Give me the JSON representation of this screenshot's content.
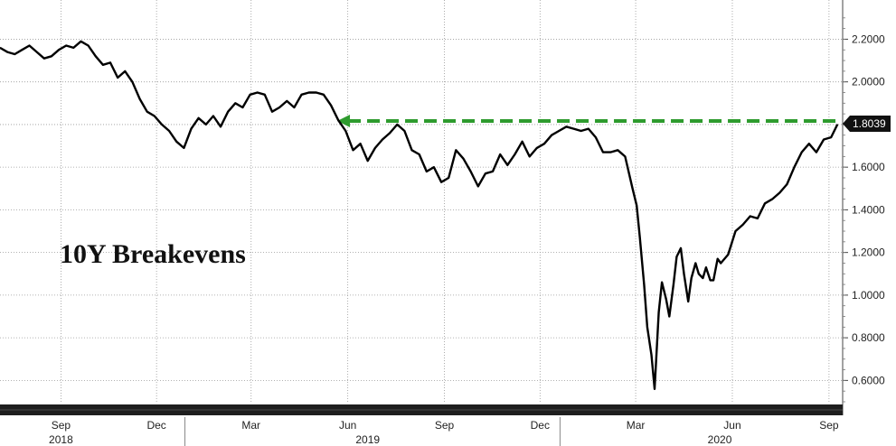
{
  "chart_data": {
    "type": "line",
    "title": "10Y Breakevens",
    "ylim": [
      0.5,
      2.35
    ],
    "y_ticks": [
      "2.2000",
      "2.0000",
      "1.8000",
      "1.6000",
      "1.4000",
      "1.2000",
      "1.0000",
      "0.8000",
      "0.6000"
    ],
    "y_tick_values": [
      2.2,
      2.0,
      1.8,
      1.6,
      1.4,
      1.2,
      1.0,
      0.8,
      0.6
    ],
    "x_range": [
      "2018-07-05",
      "2020-09-14"
    ],
    "month_ticks": [
      {
        "label": "Sep",
        "date": "2018-09-01"
      },
      {
        "label": "Dec",
        "date": "2018-12-01"
      },
      {
        "label": "Mar",
        "date": "2019-03-01"
      },
      {
        "label": "Jun",
        "date": "2019-06-01"
      },
      {
        "label": "Sep",
        "date": "2019-09-01"
      },
      {
        "label": "Dec",
        "date": "2019-12-01"
      },
      {
        "label": "Mar",
        "date": "2020-03-01"
      },
      {
        "label": "Jun",
        "date": "2020-06-01"
      },
      {
        "label": "Sep",
        "date": "2020-09-01"
      }
    ],
    "year_labels": [
      {
        "label": "2018",
        "date": "2018-09-01"
      },
      {
        "label": "2019",
        "date": "2019-06-20"
      },
      {
        "label": "2020",
        "date": "2020-05-20"
      }
    ],
    "year_separators": [
      "2018-12-28",
      "2019-12-20"
    ],
    "last_value_label": "1.8039",
    "reference_line": {
      "value": 1.8039,
      "from": "2019-05-22",
      "to": "2020-09-09",
      "color": "#2e9b2e"
    },
    "series": [
      {
        "color": "#000000",
        "points": [
          [
            "2018-07-05",
            2.16
          ],
          [
            "2018-07-12",
            2.14
          ],
          [
            "2018-07-19",
            2.13
          ],
          [
            "2018-07-26",
            2.15
          ],
          [
            "2018-08-02",
            2.17
          ],
          [
            "2018-08-09",
            2.14
          ],
          [
            "2018-08-16",
            2.11
          ],
          [
            "2018-08-23",
            2.12
          ],
          [
            "2018-08-30",
            2.15
          ],
          [
            "2018-09-06",
            2.17
          ],
          [
            "2018-09-13",
            2.16
          ],
          [
            "2018-09-20",
            2.19
          ],
          [
            "2018-09-27",
            2.17
          ],
          [
            "2018-10-04",
            2.12
          ],
          [
            "2018-10-11",
            2.08
          ],
          [
            "2018-10-18",
            2.09
          ],
          [
            "2018-10-25",
            2.02
          ],
          [
            "2018-11-01",
            2.05
          ],
          [
            "2018-11-08",
            2.0
          ],
          [
            "2018-11-15",
            1.92
          ],
          [
            "2018-11-22",
            1.86
          ],
          [
            "2018-11-29",
            1.84
          ],
          [
            "2018-12-06",
            1.8
          ],
          [
            "2018-12-13",
            1.77
          ],
          [
            "2018-12-20",
            1.72
          ],
          [
            "2018-12-27",
            1.69
          ],
          [
            "2019-01-03",
            1.78
          ],
          [
            "2019-01-10",
            1.83
          ],
          [
            "2019-01-17",
            1.8
          ],
          [
            "2019-01-24",
            1.84
          ],
          [
            "2019-01-31",
            1.79
          ],
          [
            "2019-02-07",
            1.86
          ],
          [
            "2019-02-14",
            1.9
          ],
          [
            "2019-02-21",
            1.88
          ],
          [
            "2019-02-28",
            1.94
          ],
          [
            "2019-03-07",
            1.95
          ],
          [
            "2019-03-14",
            1.94
          ],
          [
            "2019-03-21",
            1.86
          ],
          [
            "2019-03-28",
            1.88
          ],
          [
            "2019-04-04",
            1.91
          ],
          [
            "2019-04-11",
            1.88
          ],
          [
            "2019-04-18",
            1.94
          ],
          [
            "2019-04-25",
            1.95
          ],
          [
            "2019-05-02",
            1.95
          ],
          [
            "2019-05-09",
            1.94
          ],
          [
            "2019-05-16",
            1.89
          ],
          [
            "2019-05-23",
            1.82
          ],
          [
            "2019-05-30",
            1.77
          ],
          [
            "2019-06-06",
            1.68
          ],
          [
            "2019-06-13",
            1.71
          ],
          [
            "2019-06-20",
            1.63
          ],
          [
            "2019-06-27",
            1.69
          ],
          [
            "2019-07-04",
            1.73
          ],
          [
            "2019-07-11",
            1.76
          ],
          [
            "2019-07-18",
            1.8
          ],
          [
            "2019-07-25",
            1.77
          ],
          [
            "2019-08-01",
            1.68
          ],
          [
            "2019-08-08",
            1.66
          ],
          [
            "2019-08-15",
            1.58
          ],
          [
            "2019-08-22",
            1.6
          ],
          [
            "2019-08-29",
            1.53
          ],
          [
            "2019-09-05",
            1.55
          ],
          [
            "2019-09-12",
            1.68
          ],
          [
            "2019-09-19",
            1.64
          ],
          [
            "2019-09-26",
            1.58
          ],
          [
            "2019-10-03",
            1.51
          ],
          [
            "2019-10-10",
            1.57
          ],
          [
            "2019-10-17",
            1.58
          ],
          [
            "2019-10-24",
            1.66
          ],
          [
            "2019-10-31",
            1.61
          ],
          [
            "2019-11-07",
            1.66
          ],
          [
            "2019-11-14",
            1.72
          ],
          [
            "2019-11-21",
            1.65
          ],
          [
            "2019-11-28",
            1.69
          ],
          [
            "2019-12-05",
            1.71
          ],
          [
            "2019-12-12",
            1.75
          ],
          [
            "2019-12-19",
            1.77
          ],
          [
            "2019-12-26",
            1.79
          ],
          [
            "2020-01-02",
            1.78
          ],
          [
            "2020-01-09",
            1.77
          ],
          [
            "2020-01-16",
            1.78
          ],
          [
            "2020-01-23",
            1.74
          ],
          [
            "2020-01-30",
            1.67
          ],
          [
            "2020-02-06",
            1.67
          ],
          [
            "2020-02-13",
            1.68
          ],
          [
            "2020-02-20",
            1.65
          ],
          [
            "2020-02-27",
            1.5
          ],
          [
            "2020-03-02",
            1.42
          ],
          [
            "2020-03-05",
            1.27
          ],
          [
            "2020-03-09",
            1.05
          ],
          [
            "2020-03-12",
            0.85
          ],
          [
            "2020-03-16",
            0.72
          ],
          [
            "2020-03-19",
            0.56
          ],
          [
            "2020-03-23",
            0.92
          ],
          [
            "2020-03-26",
            1.06
          ],
          [
            "2020-03-30",
            0.98
          ],
          [
            "2020-04-02",
            0.9
          ],
          [
            "2020-04-06",
            1.05
          ],
          [
            "2020-04-09",
            1.18
          ],
          [
            "2020-04-13",
            1.22
          ],
          [
            "2020-04-16",
            1.1
          ],
          [
            "2020-04-20",
            0.97
          ],
          [
            "2020-04-23",
            1.08
          ],
          [
            "2020-04-27",
            1.15
          ],
          [
            "2020-04-30",
            1.1
          ],
          [
            "2020-05-04",
            1.08
          ],
          [
            "2020-05-07",
            1.13
          ],
          [
            "2020-05-11",
            1.07
          ],
          [
            "2020-05-14",
            1.07
          ],
          [
            "2020-05-18",
            1.17
          ],
          [
            "2020-05-21",
            1.15
          ],
          [
            "2020-05-28",
            1.19
          ],
          [
            "2020-06-04",
            1.3
          ],
          [
            "2020-06-11",
            1.33
          ],
          [
            "2020-06-18",
            1.37
          ],
          [
            "2020-06-25",
            1.36
          ],
          [
            "2020-07-02",
            1.43
          ],
          [
            "2020-07-09",
            1.45
          ],
          [
            "2020-07-16",
            1.48
          ],
          [
            "2020-07-23",
            1.52
          ],
          [
            "2020-07-30",
            1.6
          ],
          [
            "2020-08-06",
            1.67
          ],
          [
            "2020-08-13",
            1.71
          ],
          [
            "2020-08-20",
            1.67
          ],
          [
            "2020-08-27",
            1.73
          ],
          [
            "2020-09-03",
            1.74
          ],
          [
            "2020-09-09",
            1.8
          ]
        ]
      }
    ]
  }
}
